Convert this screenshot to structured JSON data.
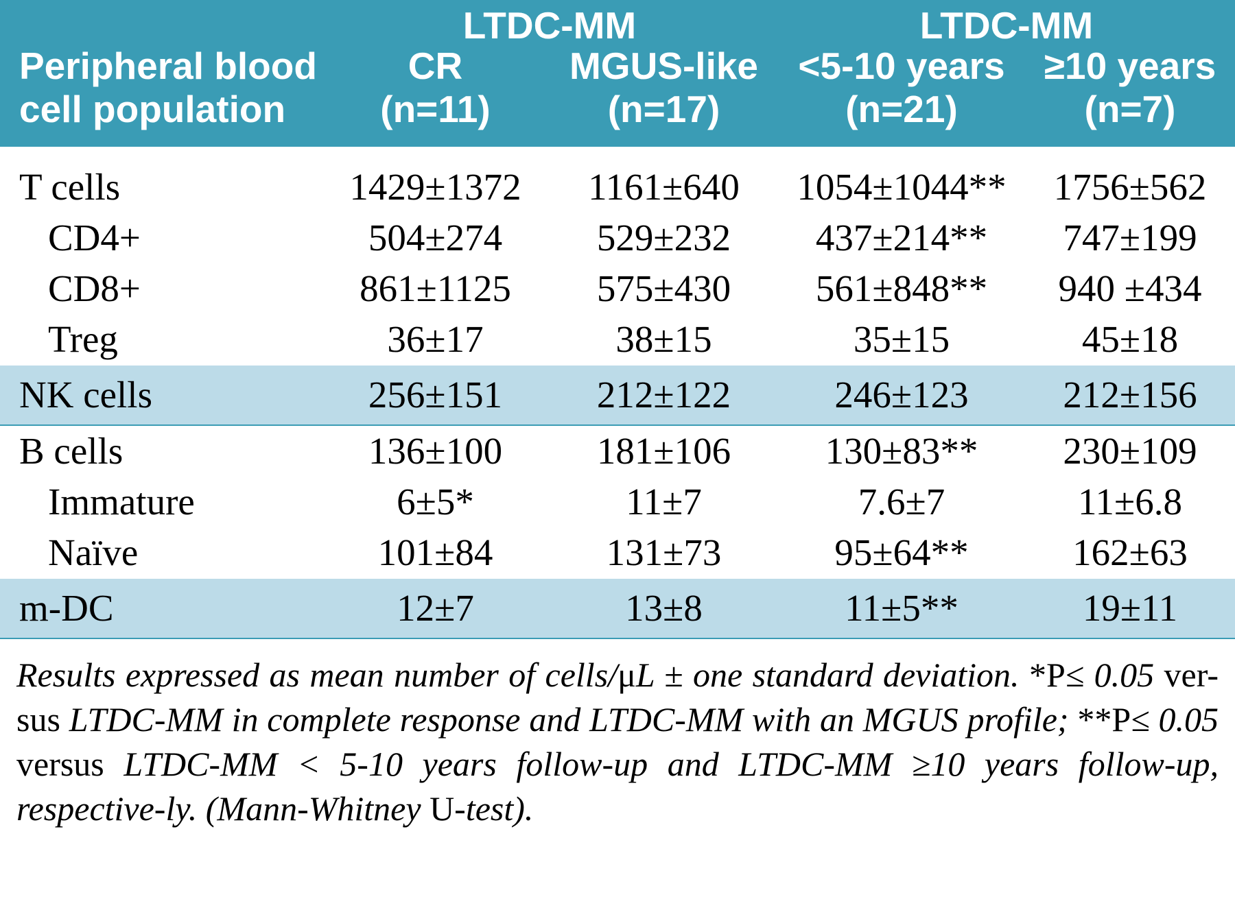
{
  "colors": {
    "header_bg": "#3a9cb5",
    "header_fg": "#ffffff",
    "shade_bg": "#bcdbe8",
    "rule": "#3a9cb5",
    "body_bg": "#ffffff",
    "text": "#000000"
  },
  "typography": {
    "header_family": "Arial, Helvetica, sans-serif",
    "body_family": "\"Times New Roman\", Times, serif",
    "header_pt": 41,
    "body_pt": 41,
    "caption_pt": 38
  },
  "table": {
    "type": "table",
    "col_widths_pct": [
      26,
      18.5,
      18.5,
      20,
      17
    ],
    "header": {
      "rowhead_line1": "Peripheral blood",
      "rowhead_line2": "cell population",
      "group1": "LTDC-MM",
      "group2": "LTDC-MM",
      "sub1_line1": "CR",
      "sub1_line2": "(n=11)",
      "sub2_line1": "MGUS-like",
      "sub2_line2": "(n=17)",
      "sub3_line1": "<5-10 years",
      "sub3_line2": "(n=21)",
      "sub4_line1": "≥10 years",
      "sub4_line2": "(n=7)"
    },
    "rows": [
      {
        "type": "spacer"
      },
      {
        "type": "data",
        "indent": 0,
        "shade": false,
        "label": "T cells",
        "c1": "1429±1372",
        "c2": "1161±640",
        "c3": "1054±1044**",
        "c4": "1756±562"
      },
      {
        "type": "data",
        "indent": 1,
        "shade": false,
        "label": "CD4+",
        "c1": "504±274",
        "c2": "529±232",
        "c3": "437±214**",
        "c4": "747±199"
      },
      {
        "type": "data",
        "indent": 1,
        "shade": false,
        "label": "CD8+",
        "c1": "861±1125",
        "c2": "575±430",
        "c3": "561±848**",
        "c4": "940 ±434"
      },
      {
        "type": "data",
        "indent": 1,
        "shade": false,
        "label": "Treg",
        "c1": "36±17",
        "c2": "38±15",
        "c3": "35±15",
        "c4": "45±18"
      },
      {
        "type": "data",
        "indent": 0,
        "shade": true,
        "rule_below": true,
        "label": "NK cells",
        "c1": "256±151",
        "c2": "212±122",
        "c3": "246±123",
        "c4": "212±156"
      },
      {
        "type": "data",
        "indent": 0,
        "shade": false,
        "label": "B cells",
        "c1": "136±100",
        "c2": "181±106",
        "c3": "130±83**",
        "c4": "230±109"
      },
      {
        "type": "data",
        "indent": 1,
        "shade": false,
        "label": "Immature",
        "c1": "6±5*",
        "c2": "11±7",
        "c3": "7.6±7",
        "c4": "11±6.8"
      },
      {
        "type": "data",
        "indent": 1,
        "shade": false,
        "label": "Naïve",
        "c1": "101±84",
        "c2": "131±73",
        "c3": "95±64**",
        "c4": "162±63"
      },
      {
        "type": "data",
        "indent": 0,
        "shade": true,
        "rule_below": true,
        "label": "m-DC",
        "c1": "12±7",
        "c2": "13±8",
        "c3": "11±5**",
        "c4": "19±11"
      }
    ]
  },
  "caption": {
    "p1a": "Results expressed as mean number of cells/",
    "p1b_up": "μ",
    "p1c": "L ± one standard deviation. ",
    "p2_up": "*P",
    "p3": "≤ 0.05 ",
    "p4_up": "ver-",
    "p5_up": "sus",
    "p6": " LTDC-MM in complete response and LTDC-MM with an MGUS profile;  ",
    "p7_up": "**P",
    "p8": "≤ 0.05 ",
    "p9_up": "versus",
    "p10": " LTDC-MM < 5-10 years follow-up and LTDC-MM ≥10 years follow-up, respective-ly. (Mann-Whitney ",
    "p11_up": "U",
    "p12": "-test)."
  }
}
